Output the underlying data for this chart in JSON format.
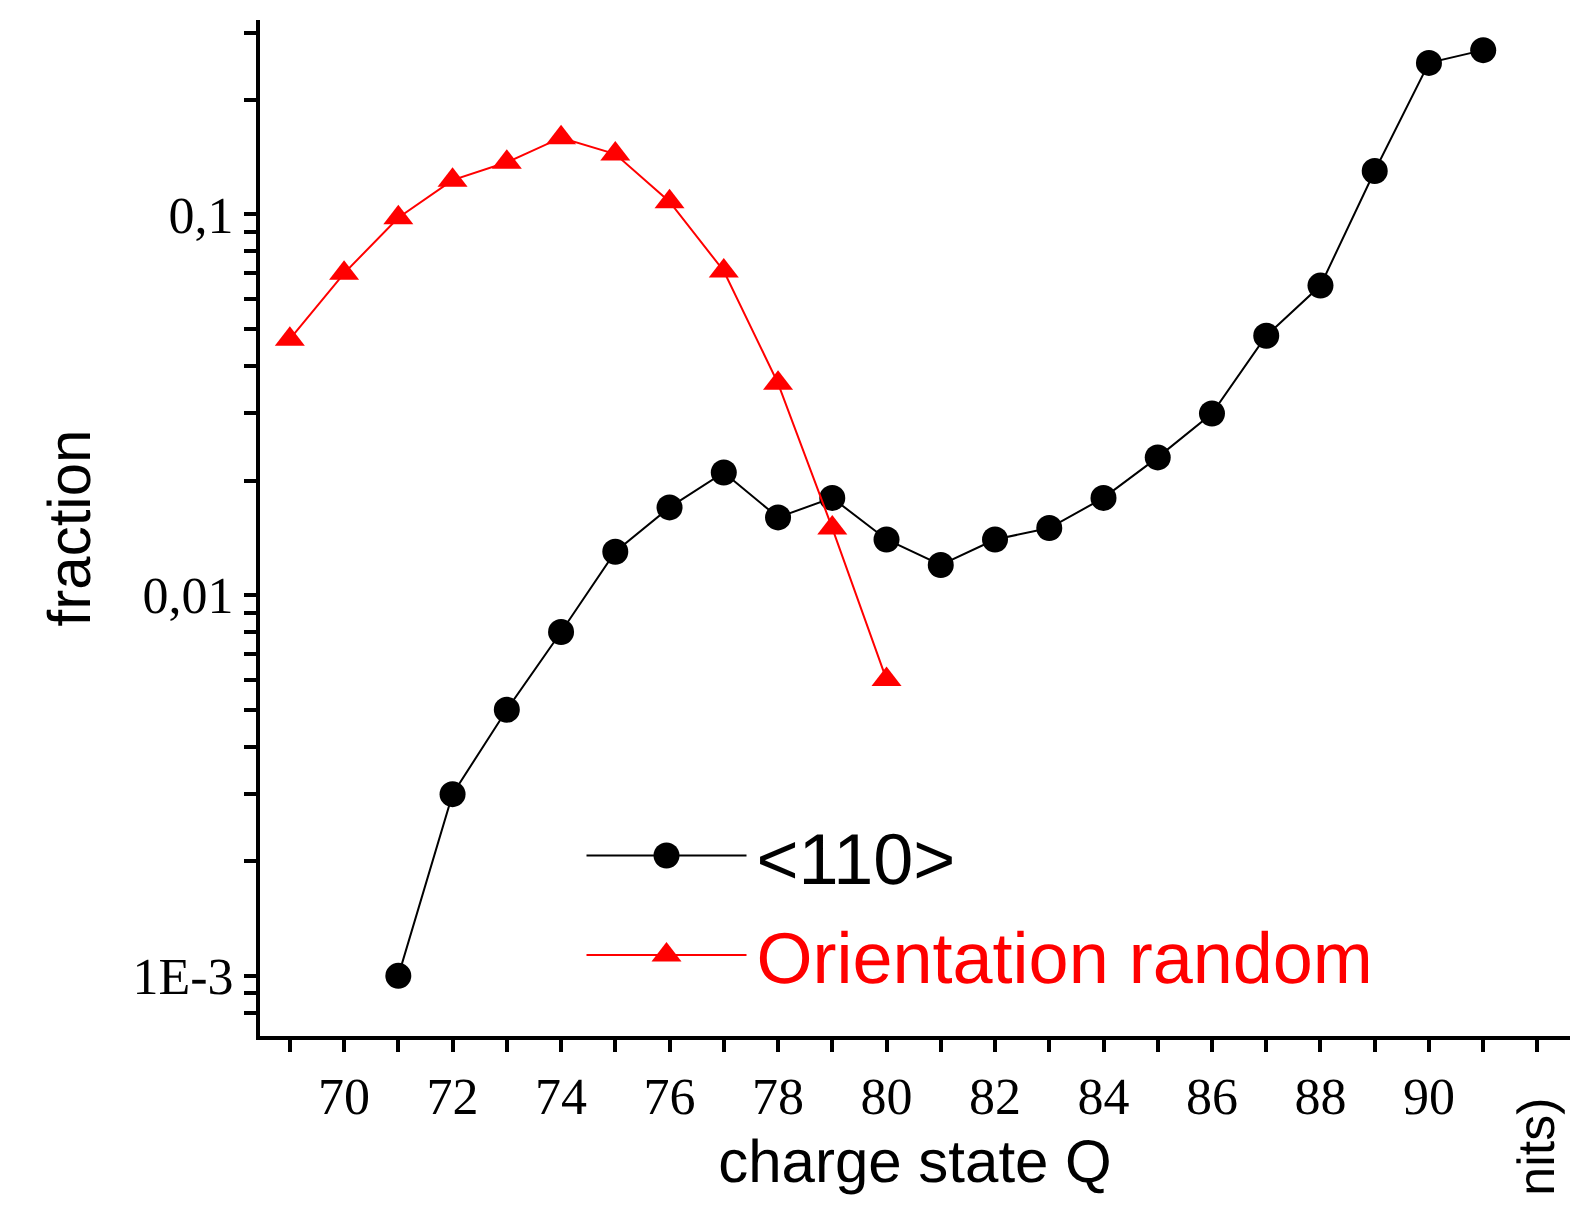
{
  "chart_data": {
    "type": "line",
    "xlabel": "charge state Q",
    "ylabel": "fraction",
    "log": "y",
    "grid": false,
    "legend": "bottom",
    "line_style": "solid",
    "xlim": [
      68.45,
      92.6
    ],
    "xticks": [
      {
        "value": 69,
        "label": null
      },
      70,
      {
        "value": 71,
        "label": null
      },
      72,
      {
        "value": 73,
        "label": null
      },
      74,
      {
        "value": 75,
        "label": null
      },
      76,
      {
        "value": 77,
        "label": null
      },
      78,
      {
        "value": 79,
        "label": null
      },
      80,
      {
        "value": 81,
        "label": null
      },
      82,
      {
        "value": 83,
        "label": null
      },
      84,
      {
        "value": 85,
        "label": null
      },
      86,
      {
        "value": 87,
        "label": null
      },
      88,
      {
        "value": 89,
        "label": null
      },
      90,
      {
        "value": 91,
        "label": null
      },
      {
        "value": 92,
        "label": null
      }
    ],
    "ylim": [
      0.000695,
      0.324
    ],
    "yticks": [
      {
        "value": 0.0008,
        "label": null
      },
      {
        "value": 0.0009,
        "label": null
      },
      {
        "value": 0.001,
        "label": "1E-3"
      },
      {
        "value": 0.002,
        "label": null
      },
      {
        "value": 0.003,
        "label": null
      },
      {
        "value": 0.004,
        "label": null
      },
      {
        "value": 0.005,
        "label": null
      },
      {
        "value": 0.006,
        "label": null
      },
      {
        "value": 0.007,
        "label": null
      },
      {
        "value": 0.008,
        "label": null
      },
      {
        "value": 0.009,
        "label": null
      },
      {
        "value": 0.01,
        "label": "0,01"
      },
      {
        "value": 0.02,
        "label": null
      },
      {
        "value": 0.03,
        "label": null
      },
      {
        "value": 0.04,
        "label": null
      },
      {
        "value": 0.05,
        "label": null
      },
      {
        "value": 0.06,
        "label": null
      },
      {
        "value": 0.07,
        "label": null
      },
      {
        "value": 0.08,
        "label": null
      },
      {
        "value": 0.09,
        "label": null
      },
      {
        "value": 0.1,
        "label": "0,1"
      },
      {
        "value": 0.2,
        "label": null
      },
      {
        "value": 0.3,
        "label": null
      }
    ],
    "annotations": [
      "nits)"
    ],
    "series": [
      {
        "name": "<110>",
        "color": "#000000",
        "marker": "circle",
        "x": [
          71,
          72,
          73,
          74,
          75,
          76,
          77,
          78,
          79,
          80,
          81,
          82,
          83,
          84,
          85,
          86,
          87,
          88,
          89,
          90,
          91
        ],
        "values": [
          0.001,
          0.003,
          0.005,
          0.008,
          0.013,
          0.017,
          0.021,
          0.016,
          0.018,
          0.014,
          0.012,
          0.014,
          0.015,
          0.018,
          0.023,
          0.03,
          0.048,
          0.065,
          0.13,
          0.25,
          0.27
        ]
      },
      {
        "name": "Orientation random",
        "color": "#ff0000",
        "marker": "triangle",
        "x": [
          69,
          70,
          71,
          72,
          73,
          74,
          75,
          76,
          77,
          78,
          79,
          80
        ],
        "values": [
          0.047,
          0.07,
          0.098,
          0.123,
          0.137,
          0.159,
          0.144,
          0.108,
          0.071,
          0.036,
          0.015,
          0.006
        ]
      }
    ]
  }
}
